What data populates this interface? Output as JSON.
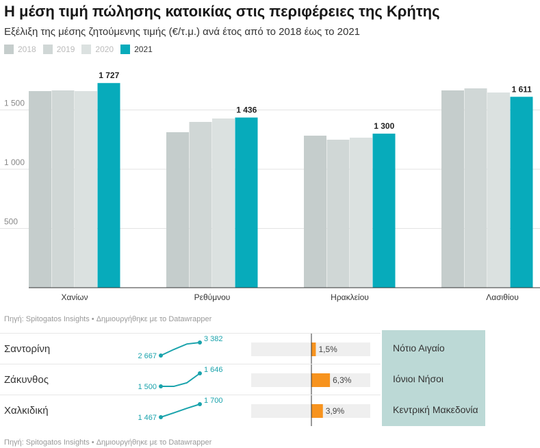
{
  "title": "Η μέση τιμή πώλησης κατοικίας στις περιφέρειες της Κρήτης",
  "subtitle": "Εξέλιξη της μέσης ζητούμενης τιμής (€/τ.μ.) ανά έτος από το 2018 έως το 2021",
  "source": "Πηγή: Spitogatos Insights • Δημιουργήθηκε με το Datawrapper",
  "chart_data": {
    "type": "bar",
    "categories": [
      "Χανίων",
      "Ρεθύμνου",
      "Ηρακλείου",
      "Λασιθίου"
    ],
    "series": [
      {
        "name": "2018",
        "color": "#c5cdcc",
        "values": [
          1659,
          1312,
          1283,
          1665
        ]
      },
      {
        "name": "2019",
        "color": "#d0d7d6",
        "values": [
          1665,
          1399,
          1249,
          1682
        ]
      },
      {
        "name": "2020",
        "color": "#dbe1e0",
        "values": [
          1659,
          1428,
          1266,
          1647
        ]
      },
      {
        "name": "2021",
        "color": "#07abbb",
        "values": [
          1727,
          1436,
          1300,
          1611
        ]
      }
    ],
    "data_labels": [
      "1 727",
      "1 436",
      "1 300",
      "1 611"
    ],
    "yticks": [
      500,
      1000,
      1500
    ],
    "ytick_labels": [
      "500",
      "1 000",
      "1 500"
    ],
    "ylim": [
      0,
      1900
    ],
    "grid": true,
    "legend_placement": "top-left"
  },
  "table": {
    "rows": [
      {
        "name": "Σαντορίνη",
        "spark": [
          2667,
          3000,
          3300,
          3382
        ],
        "start_label": "2 667",
        "end_label": "3 382",
        "change": 1.5,
        "change_label": "1,5%",
        "region": "Νότιο Αιγαίο"
      },
      {
        "name": "Ζάκυνθος",
        "spark": [
          1500,
          1500,
          1540,
          1646
        ],
        "start_label": "1 500",
        "end_label": "1 646",
        "change": 6.3,
        "change_label": "6,3%",
        "region": "Ιόνιοι Νήσοι"
      },
      {
        "name": "Χαλκιδική",
        "spark": [
          1467,
          1545,
          1625,
          1700
        ],
        "start_label": "1 467",
        "end_label": "1 700",
        "change": 3.9,
        "change_label": "3,9%",
        "region": "Κεντρική Μακεδονία"
      }
    ],
    "source": "Πηγή: Spitogatos Insights • Δημιουργήθηκε με το Datawrapper",
    "bar_color": "#f7931e",
    "spark_color": "#1aa3ac"
  }
}
